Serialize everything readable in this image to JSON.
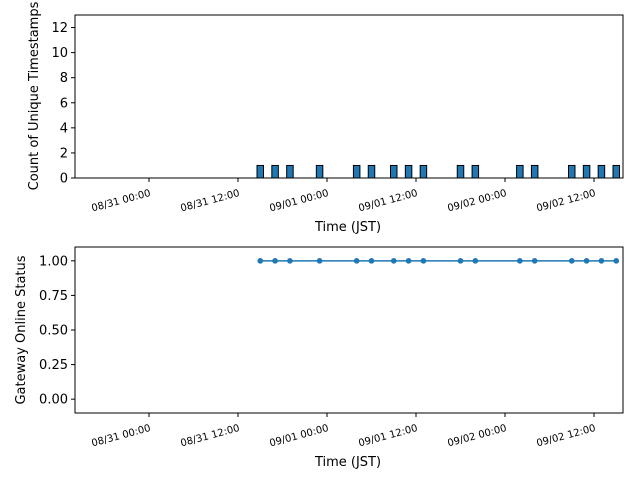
{
  "chart_data": [
    {
      "type": "bar",
      "xlabel": "Time (JST)",
      "ylabel": "Count of Unique Timestamps",
      "x_tick_labels": [
        "08/31 00:00",
        "08/31 12:00",
        "09/01 00:00",
        "09/01 12:00",
        "09/02 00:00",
        "09/02 12:00"
      ],
      "y_tick_labels": [
        "0",
        "2",
        "4",
        "6",
        "8",
        "10",
        "12"
      ],
      "ylim": [
        0,
        13
      ],
      "x": [
        "08/31 15:00",
        "08/31 17:00",
        "08/31 19:00",
        "08/31 23:00",
        "09/01 04:00",
        "09/01 06:00",
        "09/01 09:00",
        "09/01 11:00",
        "09/01 13:00",
        "09/01 18:00",
        "09/01 20:00",
        "09/02 02:00",
        "09/02 04:00",
        "09/02 09:00",
        "09/02 11:00",
        "09/02 13:00",
        "09/02 15:00"
      ],
      "values": [
        1,
        1,
        1,
        1,
        1,
        1,
        1,
        1,
        1,
        1,
        1,
        1,
        1,
        1,
        1,
        1,
        1
      ],
      "grid": false,
      "bar_color": "#1f77b4"
    },
    {
      "type": "line",
      "xlabel": "Time (JST)",
      "ylabel": "Gateway Online Status",
      "x_tick_labels": [
        "08/31 00:00",
        "08/31 12:00",
        "09/01 00:00",
        "09/01 12:00",
        "09/02 00:00",
        "09/02 12:00"
      ],
      "y_tick_labels": [
        "0.00",
        "0.25",
        "0.50",
        "0.75",
        "1.00"
      ],
      "ylim": [
        -0.1,
        1.1
      ],
      "x": [
        "08/31 15:00",
        "08/31 17:00",
        "08/31 19:00",
        "08/31 23:00",
        "09/01 04:00",
        "09/01 06:00",
        "09/01 09:00",
        "09/01 11:00",
        "09/01 13:00",
        "09/01 18:00",
        "09/01 20:00",
        "09/02 02:00",
        "09/02 04:00",
        "09/02 09:00",
        "09/02 11:00",
        "09/02 13:00",
        "09/02 15:00"
      ],
      "values": [
        1,
        1,
        1,
        1,
        1,
        1,
        1,
        1,
        1,
        1,
        1,
        1,
        1,
        1,
        1,
        1,
        1
      ],
      "grid": false,
      "line_color": "#1f77b4"
    }
  ]
}
